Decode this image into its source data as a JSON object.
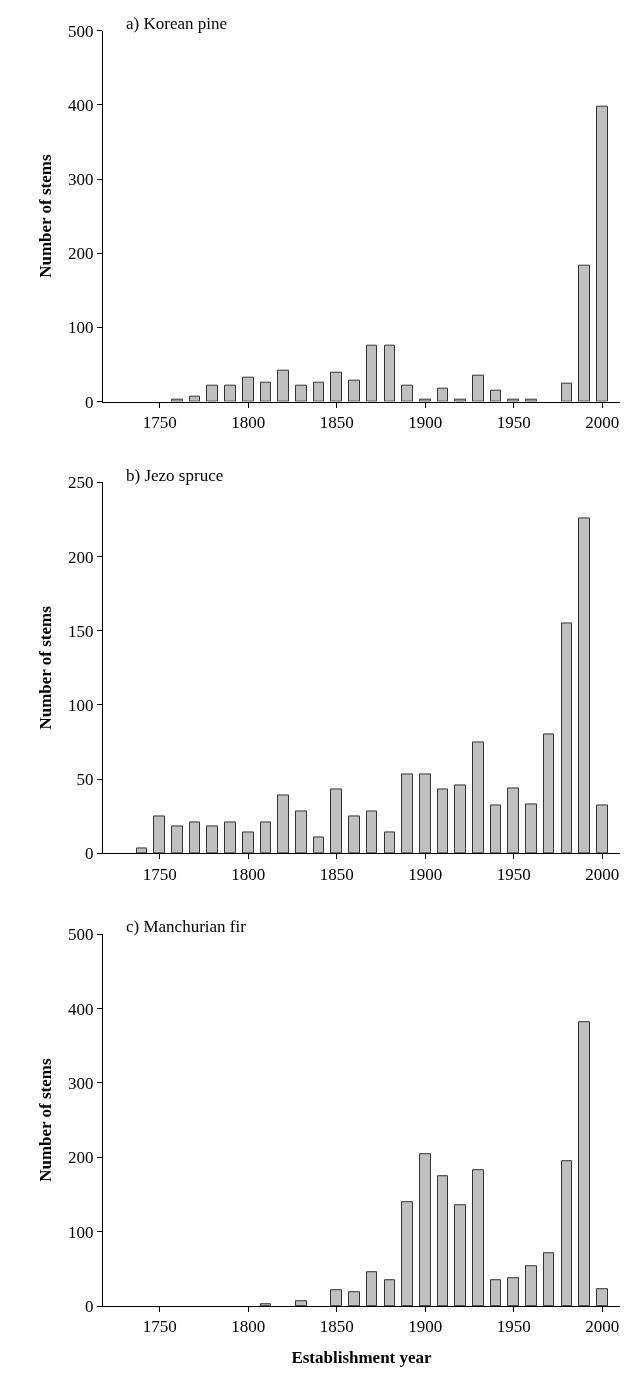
{
  "chart_data": [
    {
      "type": "bar",
      "title": "a) Korean pine",
      "ylabel": "Number of stems",
      "color": "#c0c0c0",
      "x": [
        1760,
        1770,
        1780,
        1790,
        1800,
        1810,
        1820,
        1830,
        1840,
        1850,
        1860,
        1870,
        1880,
        1890,
        1900,
        1910,
        1920,
        1930,
        1940,
        1950,
        1960,
        1980,
        1990,
        2000
      ],
      "values": [
        3,
        7,
        21,
        21,
        32,
        25,
        42,
        21,
        25,
        39,
        28,
        75,
        75,
        21,
        3,
        18,
        3,
        35,
        14,
        3,
        3,
        24,
        183,
        397
      ],
      "xlim": [
        1718,
        2010
      ],
      "xticks": [
        1750,
        1800,
        1850,
        1900,
        1950,
        2000
      ],
      "ylim": [
        0,
        500
      ],
      "yticks": [
        0,
        100,
        200,
        300,
        400,
        500
      ]
    },
    {
      "type": "bar",
      "title": "b) Jezo spruce",
      "ylabel": "Number of stems",
      "color": "#c0c0c0",
      "x": [
        1740,
        1750,
        1760,
        1770,
        1780,
        1790,
        1800,
        1810,
        1820,
        1830,
        1840,
        1850,
        1860,
        1870,
        1880,
        1890,
        1900,
        1910,
        1920,
        1930,
        1940,
        1950,
        1960,
        1970,
        1980,
        1990,
        2000
      ],
      "values": [
        3,
        25,
        18,
        21,
        18,
        21,
        14,
        21,
        39,
        28,
        11,
        43,
        25,
        28,
        14,
        53,
        53,
        43,
        46,
        75,
        32,
        44,
        33,
        80,
        155,
        226,
        32
      ],
      "xlim": [
        1718,
        2010
      ],
      "xticks": [
        1750,
        1800,
        1850,
        1900,
        1950,
        2000
      ],
      "ylim": [
        0,
        250
      ],
      "yticks": [
        0,
        50,
        100,
        150,
        200,
        250
      ]
    },
    {
      "type": "bar",
      "title": "c) Manchurian fir",
      "ylabel": "Number of stems",
      "xlabel": "Establishment year",
      "color": "#c0c0c0",
      "x": [
        1810,
        1830,
        1850,
        1860,
        1870,
        1880,
        1890,
        1900,
        1910,
        1920,
        1930,
        1940,
        1950,
        1960,
        1970,
        1980,
        1990,
        2000
      ],
      "values": [
        3,
        7,
        21,
        18,
        46,
        35,
        139,
        204,
        175,
        136,
        183,
        35,
        38,
        53,
        71,
        195,
        382,
        23
      ],
      "xlim": [
        1718,
        2010
      ],
      "xticks": [
        1750,
        1800,
        1850,
        1900,
        1950,
        2000
      ],
      "ylim": [
        0,
        500
      ],
      "yticks": [
        0,
        100,
        200,
        300,
        400,
        500
      ]
    }
  ]
}
